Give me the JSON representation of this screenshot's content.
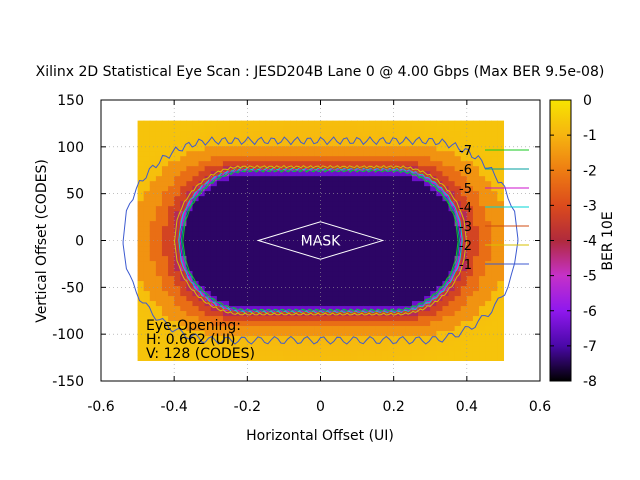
{
  "chart_data": {
    "type": "heatmap",
    "title": "Xilinx 2D Statistical Eye Scan : JESD204B Lane 0 @ 4.00 Gbps (Max BER 9.5e-08)",
    "xlabel": "Horizontal Offset (UI)",
    "ylabel": "Vertical Offset (CODES)",
    "xlim": [
      -0.6,
      0.6
    ],
    "ylim": [
      -150,
      150
    ],
    "x_ticks": [
      "-0.6",
      "-0.4",
      "-0.2",
      "0",
      "0.2",
      "0.4",
      "0.6"
    ],
    "y_ticks": [
      "150",
      "100",
      "50",
      "0",
      "-50",
      "-100",
      "-150"
    ],
    "x_tick_values": [
      -0.6,
      -0.4,
      -0.2,
      0,
      0.2,
      0.4,
      0.6
    ],
    "y_tick_values": [
      150,
      100,
      50,
      0,
      -50,
      -100,
      -150
    ],
    "grid": true,
    "scan_x_range": [
      -0.5,
      0.5
    ],
    "scan_y_range": [
      -128,
      128
    ],
    "colorbar": {
      "label": "BER 10E",
      "range": [
        -8,
        0
      ],
      "ticks": [
        "0",
        "-1",
        "-2",
        "-3",
        "-4",
        "-5",
        "-6",
        "-7",
        "-8"
      ],
      "tick_values": [
        0,
        -1,
        -2,
        -3,
        -4,
        -5,
        -6,
        -7,
        -8
      ],
      "colors": [
        "#f7e400",
        "#f6b410",
        "#ee7d12",
        "#dc4b1c",
        "#b02a3c",
        "#c531c8",
        "#8f18ee",
        "#4a08a8",
        "#000000"
      ]
    },
    "eye_half_width": 0.38,
    "eye_top_flat": 75,
    "contours": [
      {
        "name": "-7",
        "color": "#14c81e",
        "scale": 0.99
      },
      {
        "name": "-6",
        "color": "#009f9f",
        "scale": 1.0
      },
      {
        "name": "-5",
        "color": "#cc10cc",
        "scale": 1.01
      },
      {
        "name": "-4",
        "color": "#00d6d6",
        "scale": 1.02
      },
      {
        "name": "-3",
        "color": "#d04b10",
        "scale": 1.03
      },
      {
        "name": "-2",
        "color": "#d7c000",
        "scale": 1.05
      },
      {
        "name": "-1",
        "color": "#3c5ad0",
        "scale": 1.42
      }
    ],
    "mask": {
      "label": "MASK",
      "points": [
        [
          -0.17,
          0
        ],
        [
          0,
          20
        ],
        [
          0.17,
          0
        ],
        [
          0,
          -20
        ]
      ]
    },
    "eye_opening": {
      "title": "Eye-Opening:",
      "h": "H: 0.662 (UI)",
      "v": "V: 128 (CODES)"
    }
  }
}
